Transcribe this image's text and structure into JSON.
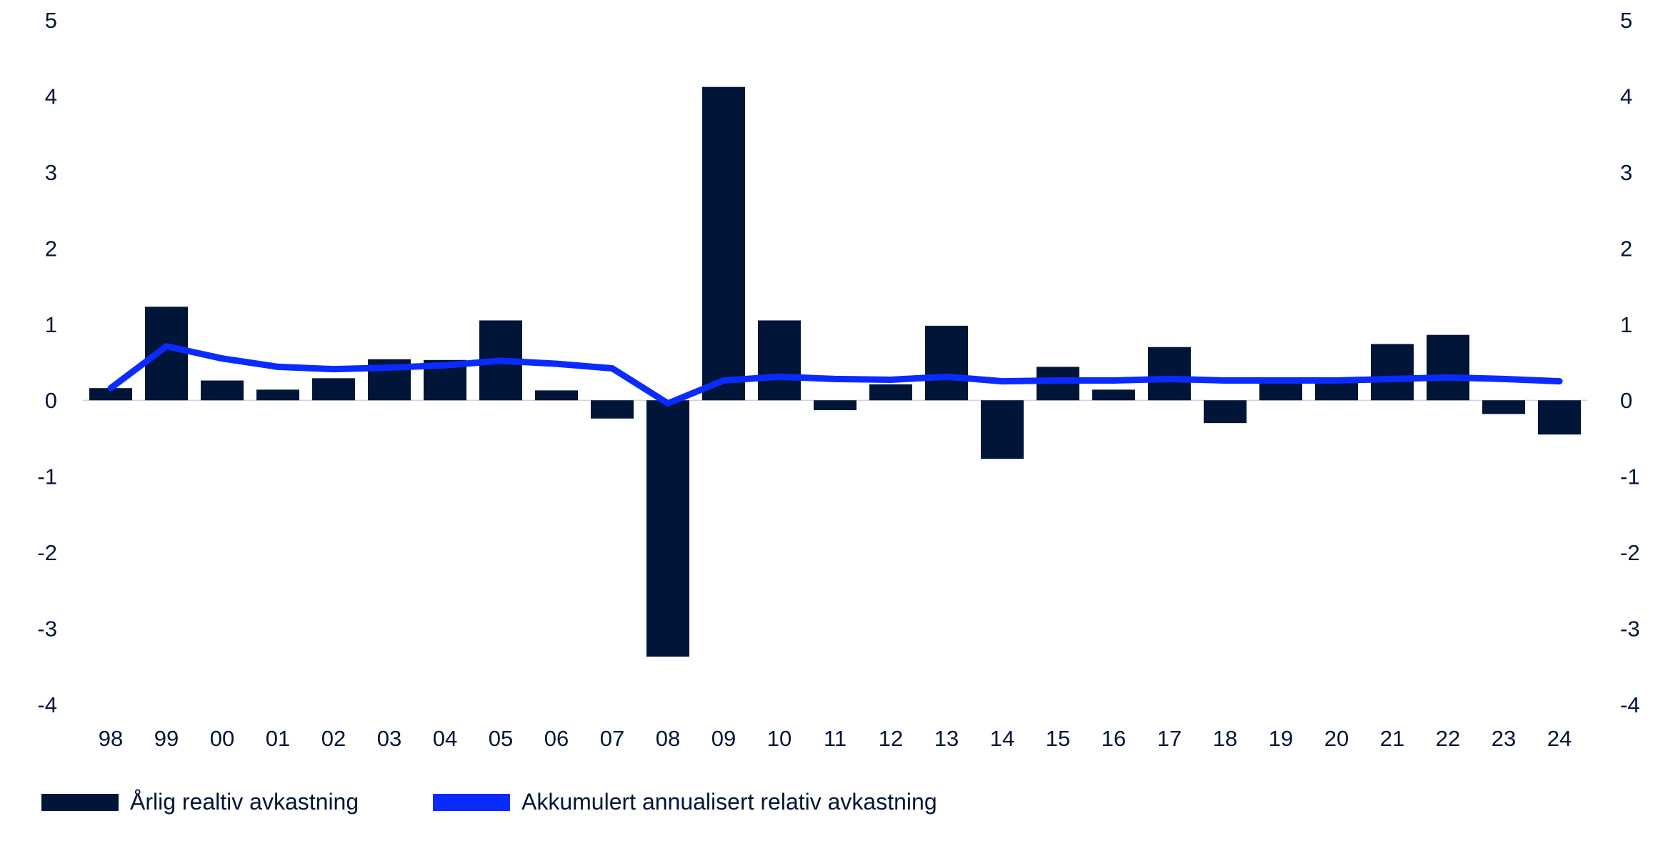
{
  "chart_data": {
    "type": "bar",
    "categories": [
      "98",
      "99",
      "00",
      "01",
      "02",
      "03",
      "04",
      "05",
      "06",
      "07",
      "08",
      "09",
      "10",
      "11",
      "12",
      "13",
      "14",
      "15",
      "16",
      "17",
      "18",
      "19",
      "20",
      "21",
      "22",
      "23",
      "24"
    ],
    "series": [
      {
        "name": "Årlig realtiv avkastning",
        "type": "bar",
        "color": "#001538",
        "values": [
          0.16,
          1.23,
          0.26,
          0.14,
          0.29,
          0.54,
          0.53,
          1.05,
          0.13,
          -0.24,
          -3.37,
          4.12,
          1.05,
          -0.13,
          0.21,
          0.98,
          -0.77,
          0.44,
          0.14,
          0.7,
          -0.3,
          0.26,
          0.26,
          0.74,
          0.86,
          -0.18,
          -0.45
        ]
      },
      {
        "name": "Akkumulert annualisert relativ avkastning",
        "type": "line",
        "color": "#0A2BFF",
        "values": [
          0.16,
          0.71,
          0.55,
          0.44,
          0.41,
          0.43,
          0.46,
          0.52,
          0.48,
          0.42,
          -0.04,
          0.26,
          0.31,
          0.28,
          0.27,
          0.31,
          0.25,
          0.26,
          0.26,
          0.28,
          0.26,
          0.26,
          0.26,
          0.28,
          0.3,
          0.28,
          0.25
        ]
      }
    ],
    "y_ticks": [
      "5",
      "4",
      "3",
      "2",
      "1",
      "0",
      "-1",
      "-2",
      "-3",
      "-4"
    ],
    "ylim": [
      -4,
      5
    ],
    "grid": false,
    "legend_position": "bottom-left"
  }
}
